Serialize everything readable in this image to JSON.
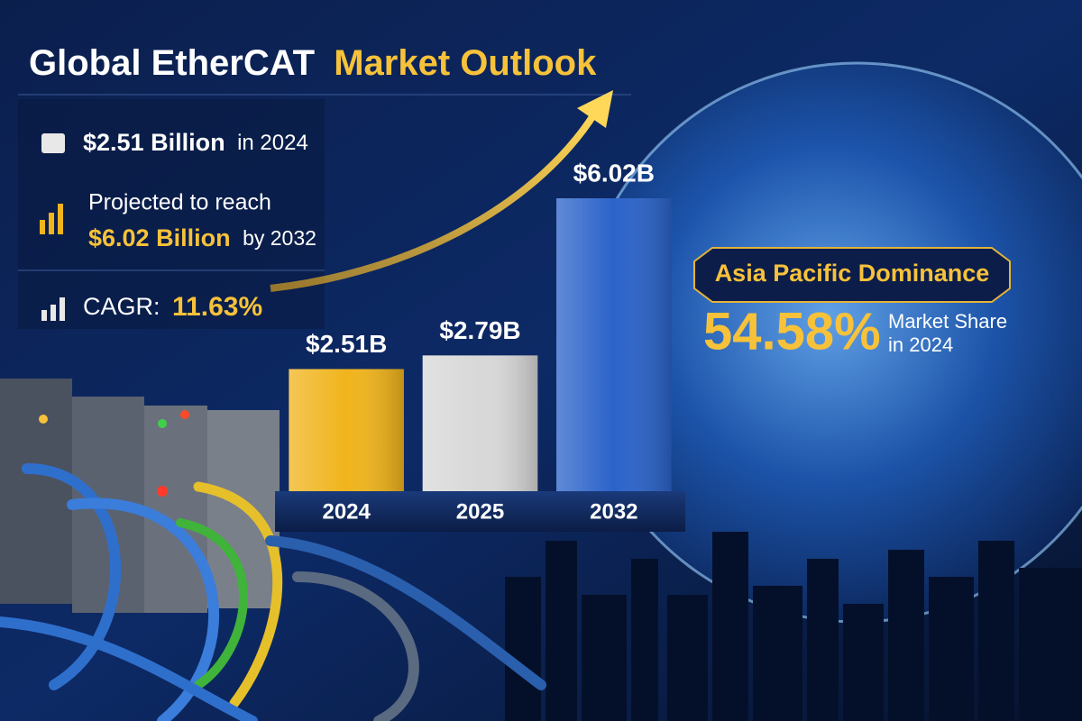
{
  "title": {
    "lead": "Global EtherCAT",
    "accent": "Market Outlook"
  },
  "stats": {
    "size": {
      "amount": "$2.51 Billion",
      "year": "in 2024"
    },
    "projection": {
      "lead": "Projected to reach",
      "amount": "$6.02 Billion",
      "year": "by 2032"
    },
    "cagr": {
      "label": "CAGR:",
      "value": "11.63%"
    }
  },
  "chart_data": {
    "type": "bar",
    "categories": [
      "2024",
      "2025",
      "2032"
    ],
    "values": [
      2.51,
      2.79,
      6.02
    ],
    "value_labels": [
      "$2.51B",
      "$2.79B",
      "$6.02B"
    ],
    "colors": [
      "#f0b41c",
      "#d8d8d8",
      "#2b63c9"
    ]
  },
  "callout": {
    "title": "Asia Pacific Dominance",
    "value": "54.58%",
    "label": "Market Share",
    "year": "in 2024"
  }
}
